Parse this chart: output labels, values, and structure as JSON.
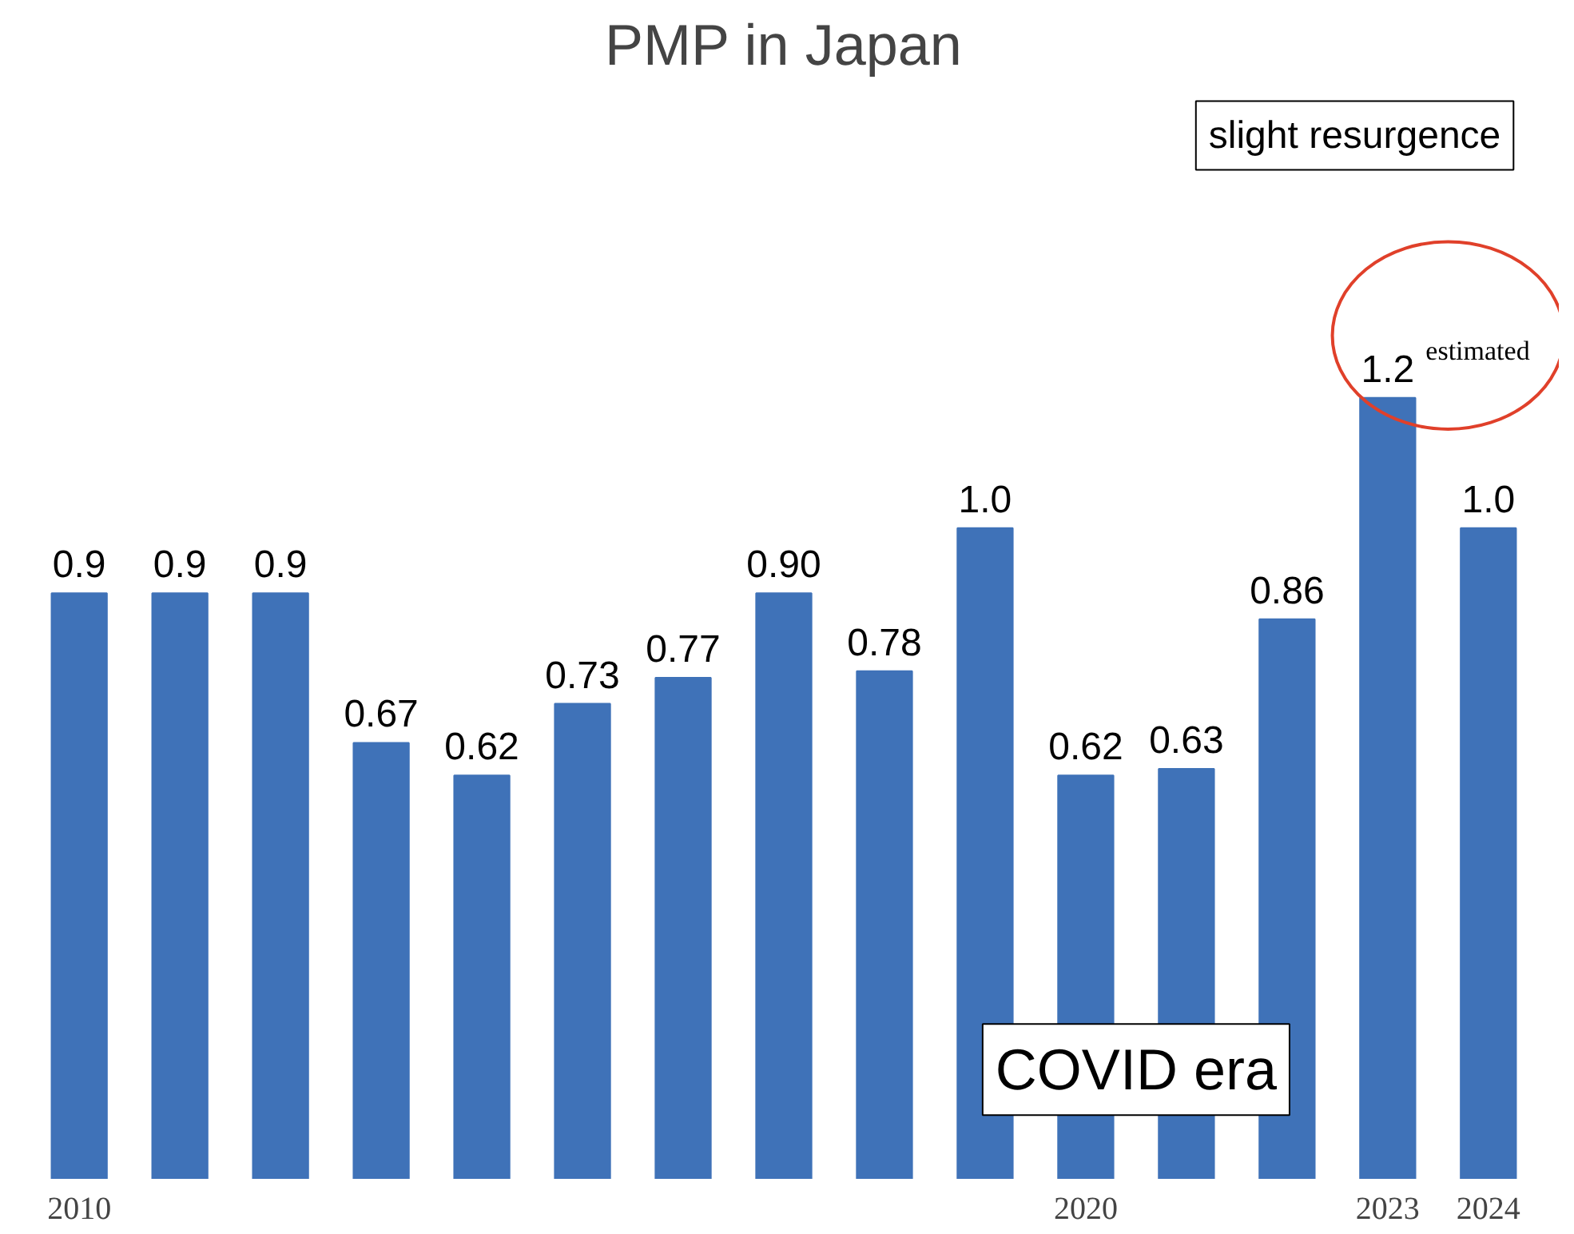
{
  "chart_data": {
    "type": "bar",
    "title": "PMP in Japan",
    "categories": [
      "2010",
      null,
      null,
      null,
      null,
      null,
      null,
      null,
      null,
      null,
      "2020",
      null,
      null,
      "2023",
      "2024"
    ],
    "values": [
      0.9,
      0.9,
      0.9,
      0.67,
      0.62,
      0.73,
      0.77,
      0.9,
      0.78,
      1.0,
      0.62,
      0.63,
      0.86,
      1.2,
      1.0
    ],
    "value_labels": [
      "0.9",
      "0.9",
      "0.9",
      "0.67",
      "0.62",
      "0.73",
      "0.77",
      "0.90",
      "0.78",
      "1.0",
      "0.62",
      "0.63",
      "0.86",
      "1.2",
      "1.0"
    ],
    "color": "#3f72b8",
    "annotations": [
      "slight resurgence",
      "estimated",
      "COVID era"
    ],
    "grid": false
  }
}
